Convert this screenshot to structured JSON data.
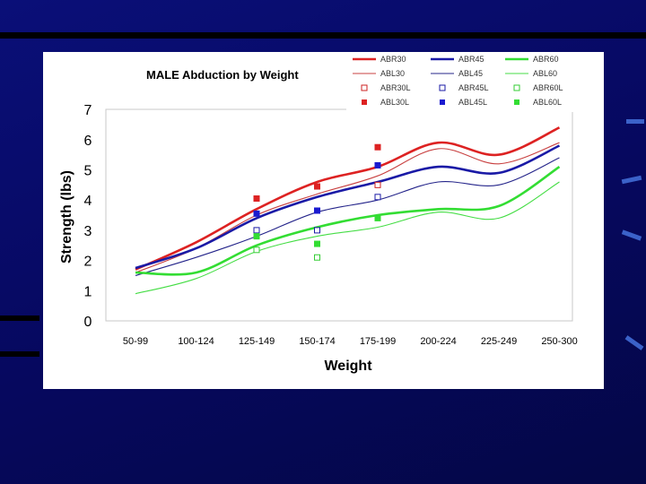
{
  "chart_data": {
    "type": "line",
    "title": "MALE Abduction by Weight",
    "xlabel": "Weight",
    "ylabel": "Strength (lbs)",
    "ylim": [
      0,
      7
    ],
    "yticks": [
      "0",
      "1",
      "2",
      "3",
      "4",
      "5",
      "6",
      "7"
    ],
    "grid": false,
    "legend_position": "top-right",
    "categories": [
      "50-99",
      "100-124",
      "125-149",
      "150-174",
      "175-199",
      "200-224",
      "225-249",
      "250-300"
    ],
    "series": [
      {
        "name": "ABR30",
        "kind": "line",
        "color": "#dd2222",
        "style": "thick",
        "values": [
          1.7,
          2.6,
          3.7,
          4.6,
          5.1,
          5.9,
          5.5,
          6.4
        ]
      },
      {
        "name": "ABR45",
        "kind": "line",
        "color": "#1a1aa6",
        "style": "thick",
        "values": [
          1.75,
          2.4,
          3.4,
          4.1,
          4.6,
          5.1,
          4.9,
          5.8
        ]
      },
      {
        "name": "ABR60",
        "kind": "line",
        "color": "#33dd33",
        "style": "thick",
        "values": [
          1.6,
          1.6,
          2.5,
          3.1,
          3.5,
          3.7,
          3.8,
          5.1
        ]
      },
      {
        "name": "ABL30",
        "kind": "line",
        "color": "#c84040",
        "style": "thin",
        "values": [
          1.6,
          2.4,
          3.5,
          4.2,
          4.8,
          5.7,
          5.2,
          5.9
        ]
      },
      {
        "name": "ABL45",
        "kind": "line",
        "color": "#24248a",
        "style": "thin",
        "values": [
          1.5,
          2.1,
          2.8,
          3.6,
          4.0,
          4.6,
          4.5,
          5.4
        ]
      },
      {
        "name": "ABL60",
        "kind": "line",
        "color": "#44dd44",
        "style": "thin",
        "values": [
          0.9,
          1.4,
          2.3,
          2.8,
          3.1,
          3.6,
          3.4,
          4.6
        ]
      },
      {
        "name": "ABR30L",
        "kind": "marker",
        "marker": "open",
        "color": "#cc2222",
        "values": [
          null,
          null,
          null,
          null,
          4.5,
          null,
          null,
          null
        ]
      },
      {
        "name": "ABR45L",
        "kind": "marker",
        "marker": "open",
        "color": "#1a1aa6",
        "values": [
          null,
          null,
          3.0,
          3.0,
          4.1,
          null,
          null,
          null
        ]
      },
      {
        "name": "ABR60L",
        "kind": "marker",
        "marker": "open",
        "color": "#33cc33",
        "values": [
          null,
          null,
          2.35,
          2.1,
          null,
          null,
          null,
          null
        ]
      },
      {
        "name": "ABL30L",
        "kind": "marker",
        "marker": "filled",
        "color": "#dd2222",
        "values": [
          null,
          null,
          4.05,
          4.45,
          5.75,
          null,
          null,
          null
        ]
      },
      {
        "name": "ABL45L",
        "kind": "marker",
        "marker": "filled",
        "color": "#1a1ad0",
        "values": [
          null,
          null,
          3.55,
          3.65,
          5.15,
          null,
          null,
          null
        ]
      },
      {
        "name": "ABL60L",
        "kind": "marker",
        "marker": "filled",
        "color": "#33dd33",
        "values": [
          null,
          null,
          2.8,
          2.55,
          3.4,
          null,
          null,
          null
        ]
      }
    ]
  }
}
